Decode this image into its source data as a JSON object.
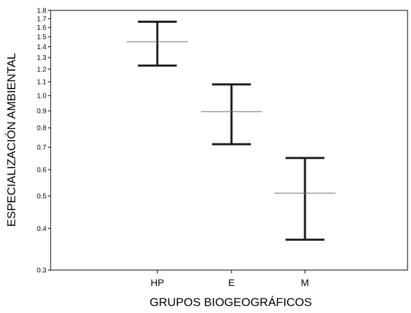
{
  "chart_data": {
    "type": "errorbar",
    "title": "",
    "xlabel": "GRUPOS BIOGEOGRÁFICOS",
    "ylabel": "ESPECIALIZACIÓN AMBIENTAL",
    "yscale": "log",
    "ylim": [
      0.3,
      1.8
    ],
    "yticks": [
      "0.3",
      "0.4",
      "0.5",
      "0.6",
      "0.7",
      "0.8",
      "0.9",
      "1.0",
      "1.1",
      "1.2",
      "1.3",
      "1.4",
      "1.5",
      "1.6",
      "1.7",
      "1.8"
    ],
    "categories": [
      "HP",
      "E",
      "M"
    ],
    "mean": [
      1.45,
      0.895,
      0.51
    ],
    "lower": [
      1.23,
      0.715,
      0.37
    ],
    "upper": [
      1.665,
      1.08,
      0.65
    ],
    "grid": false,
    "legend": "none"
  }
}
